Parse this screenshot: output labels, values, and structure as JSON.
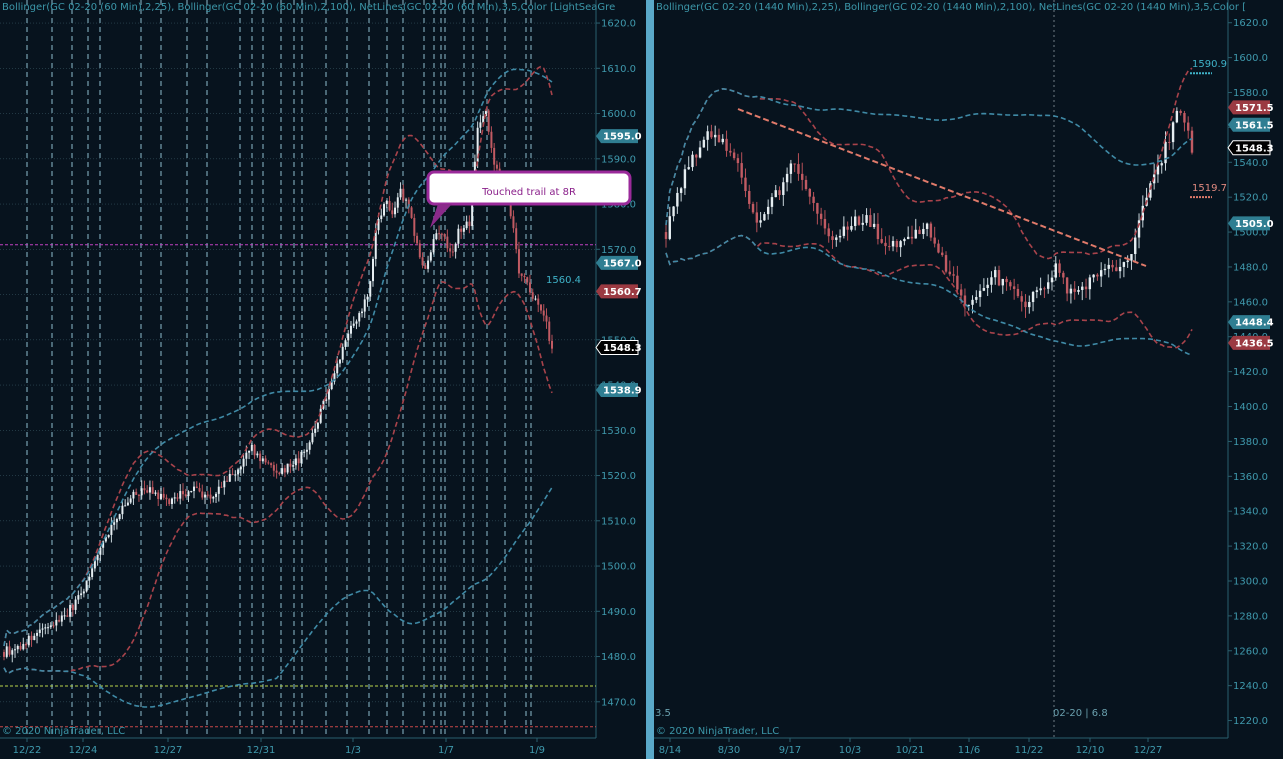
{
  "left": {
    "header": "Bollinger(GC 02-20 (60 Min),2,25), Bollinger(GC 02-20 (60 Min),2,100), NetLines(GC 02-20 (60 Min),3,5,Color [LightSeaGre",
    "copyright": "© 2020 NinjaTrader, LLC",
    "annotation": "Touched trail at 8R",
    "extra_labels": [
      {
        "text": "1560.4",
        "price": 1562.5
      }
    ]
  },
  "right": {
    "header": "Bollinger(GC 02-20 (1440 Min),2,25), Bollinger(GC 02-20 (1440 Min),2,100), NetLines(GC 02-20 (1440 Min),3,5,Color [",
    "copyright": "© 2020 NinjaTrader, LLC",
    "bottom_left": "3.5",
    "bottom_mid": "02-20 | 6.8",
    "extra_labels": [
      {
        "text": "1590.9",
        "price": 1594.5
      },
      {
        "text": "1519.7",
        "price": 1523.5
      }
    ]
  },
  "chart_data": [
    {
      "type": "candlestick",
      "instrument": "GC 02-20 (60 Min)",
      "x_ticks": [
        "12/22",
        "12/24",
        "12/27",
        "12/31",
        "1/3",
        "1/7",
        "1/9"
      ],
      "y_ticks": [
        1470.0,
        1480.0,
        1490.0,
        1500.0,
        1510.0,
        1520.0,
        1530.0,
        1540.0,
        1550.0,
        1560.0,
        1570.0,
        1580.0,
        1590.0,
        1600.0,
        1610.0,
        1620.0
      ],
      "ylim": [
        1462,
        1622
      ],
      "price_tags": [
        {
          "value": "1595.0",
          "price": 1595.0,
          "color": "#2f7e92"
        },
        {
          "value": "1567.0",
          "price": 1567.0,
          "color": "#2f7e92"
        },
        {
          "value": "1560.7",
          "price": 1560.7,
          "color": "#9b3a42"
        },
        {
          "value": "1548.3",
          "price": 1548.3,
          "color": "#ffffff"
        },
        {
          "value": "1538.9",
          "price": 1538.9,
          "color": "#2f7e92"
        }
      ],
      "horizontal_lines": [
        {
          "price": 1571.0,
          "color": "#c040c0"
        },
        {
          "price": 1473.5,
          "color": "#b8d64a"
        },
        {
          "price": 1464.5,
          "color": "#c84848"
        }
      ],
      "close_path": [
        [
          0,
          1481
        ],
        [
          5,
          1482
        ],
        [
          10,
          1484
        ],
        [
          15,
          1486
        ],
        [
          20,
          1488
        ],
        [
          25,
          1491
        ],
        [
          30,
          1496
        ],
        [
          35,
          1504
        ],
        [
          40,
          1510
        ],
        [
          45,
          1514
        ],
        [
          50,
          1517
        ],
        [
          55,
          1516
        ],
        [
          60,
          1514
        ],
        [
          65,
          1516
        ],
        [
          70,
          1517
        ],
        [
          75,
          1515
        ],
        [
          80,
          1518
        ],
        [
          85,
          1521
        ],
        [
          90,
          1526
        ],
        [
          95,
          1523
        ],
        [
          100,
          1521
        ],
        [
          105,
          1522
        ],
        [
          110,
          1525
        ],
        [
          115,
          1533
        ],
        [
          120,
          1542
        ],
        [
          125,
          1551
        ],
        [
          130,
          1556
        ],
        [
          133,
          1560
        ],
        [
          136,
          1575
        ],
        [
          139,
          1581
        ],
        [
          142,
          1577
        ],
        [
          145,
          1583
        ],
        [
          148,
          1578
        ],
        [
          151,
          1570
        ],
        [
          154,
          1565
        ],
        [
          157,
          1572
        ],
        [
          160,
          1574
        ],
        [
          163,
          1569
        ],
        [
          166,
          1574
        ],
        [
          170,
          1576
        ],
        [
          173,
          1598
        ],
        [
          176,
          1600
        ],
        [
          179,
          1588
        ],
        [
          182,
          1585
        ],
        [
          185,
          1578
        ],
        [
          188,
          1565
        ],
        [
          191,
          1562
        ],
        [
          194,
          1558
        ],
        [
          197,
          1556
        ],
        [
          200,
          1548
        ]
      ]
    },
    {
      "type": "candlestick",
      "instrument": "GC 02-20 (1440 Min)",
      "x_ticks": [
        "8/14",
        "8/30",
        "9/17",
        "10/3",
        "10/21",
        "11/6",
        "11/22",
        "12/10",
        "12/27"
      ],
      "y_ticks": [
        1220.0,
        1240.0,
        1260.0,
        1280.0,
        1300.0,
        1320.0,
        1340.0,
        1360.0,
        1380.0,
        1400.0,
        1420.0,
        1440.0,
        1460.0,
        1480.0,
        1500.0,
        1520.0,
        1540.0,
        1560.0,
        1580.0,
        1600.0,
        1620.0
      ],
      "ylim": [
        1210,
        1625
      ],
      "price_tags": [
        {
          "value": "1571.5",
          "price": 1571.5,
          "color": "#9b3a42"
        },
        {
          "value": "1561.5",
          "price": 1561.5,
          "color": "#2f7e92"
        },
        {
          "value": "1548.3",
          "price": 1548.3,
          "color": "#ffffff"
        },
        {
          "value": "1505.0",
          "price": 1505.0,
          "color": "#2f7e92"
        },
        {
          "value": "1448.4",
          "price": 1448.4,
          "color": "#2f7e92"
        },
        {
          "value": "1436.5",
          "price": 1436.5,
          "color": "#9b3a42"
        }
      ],
      "close_path": [
        [
          0,
          1500
        ],
        [
          5,
          1520
        ],
        [
          10,
          1535
        ],
        [
          15,
          1545
        ],
        [
          20,
          1555
        ],
        [
          25,
          1555
        ],
        [
          30,
          1550
        ],
        [
          35,
          1540
        ],
        [
          40,
          1520
        ],
        [
          45,
          1505
        ],
        [
          50,
          1510
        ],
        [
          55,
          1520
        ],
        [
          60,
          1530
        ],
        [
          65,
          1540
        ],
        [
          70,
          1525
        ],
        [
          75,
          1510
        ],
        [
          80,
          1500
        ],
        [
          85,
          1495
        ],
        [
          90,
          1500
        ],
        [
          95,
          1505
        ],
        [
          100,
          1510
        ],
        [
          105,
          1500
        ],
        [
          110,
          1495
        ],
        [
          115,
          1490
        ],
        [
          120,
          1495
        ],
        [
          125,
          1500
        ],
        [
          130,
          1505
        ],
        [
          135,
          1495
        ],
        [
          140,
          1480
        ],
        [
          145,
          1470
        ],
        [
          150,
          1460
        ],
        [
          155,
          1465
        ],
        [
          160,
          1470
        ],
        [
          165,
          1475
        ],
        [
          170,
          1470
        ],
        [
          175,
          1465
        ],
        [
          180,
          1460
        ],
        [
          185,
          1465
        ],
        [
          190,
          1470
        ],
        [
          195,
          1480
        ],
        [
          200,
          1470
        ],
        [
          205,
          1465
        ],
        [
          210,
          1470
        ],
        [
          215,
          1475
        ],
        [
          220,
          1480
        ],
        [
          225,
          1478
        ],
        [
          230,
          1482
        ],
        [
          235,
          1495
        ],
        [
          240,
          1515
        ],
        [
          245,
          1530
        ],
        [
          250,
          1545
        ],
        [
          255,
          1565
        ],
        [
          258,
          1572
        ],
        [
          261,
          1560
        ],
        [
          264,
          1548
        ]
      ]
    }
  ]
}
